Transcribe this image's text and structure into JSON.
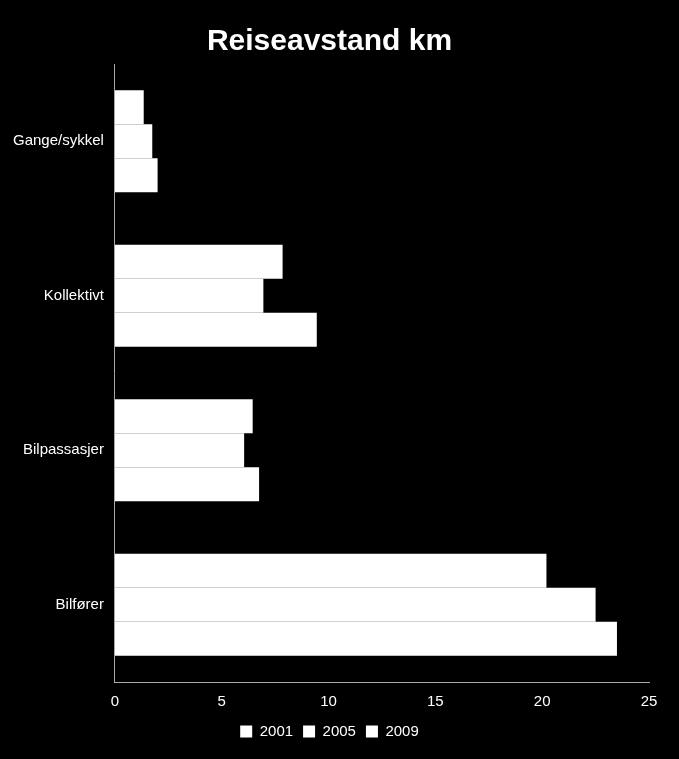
{
  "chart_data": {
    "type": "bar",
    "title": "Reiseavstand km",
    "orientation": "horizontal",
    "categories": [
      "Gange/sykkel",
      "Kollektivt",
      "Bilpassasjer",
      "Bilfører"
    ],
    "series": [
      {
        "name": "2001",
        "color": "#ffffff",
        "values": [
          1.35,
          7.85,
          6.45,
          20.2
        ]
      },
      {
        "name": "2005",
        "color": "#ffffff",
        "values": [
          1.75,
          6.95,
          6.05,
          22.5
        ]
      },
      {
        "name": "2009",
        "color": "#ffffff",
        "values": [
          2.0,
          9.45,
          6.75,
          23.5
        ]
      }
    ],
    "xlim": [
      0,
      25
    ],
    "xticks": [
      0,
      5,
      10,
      15,
      20,
      25
    ],
    "grid": false,
    "legend": "bottom"
  }
}
